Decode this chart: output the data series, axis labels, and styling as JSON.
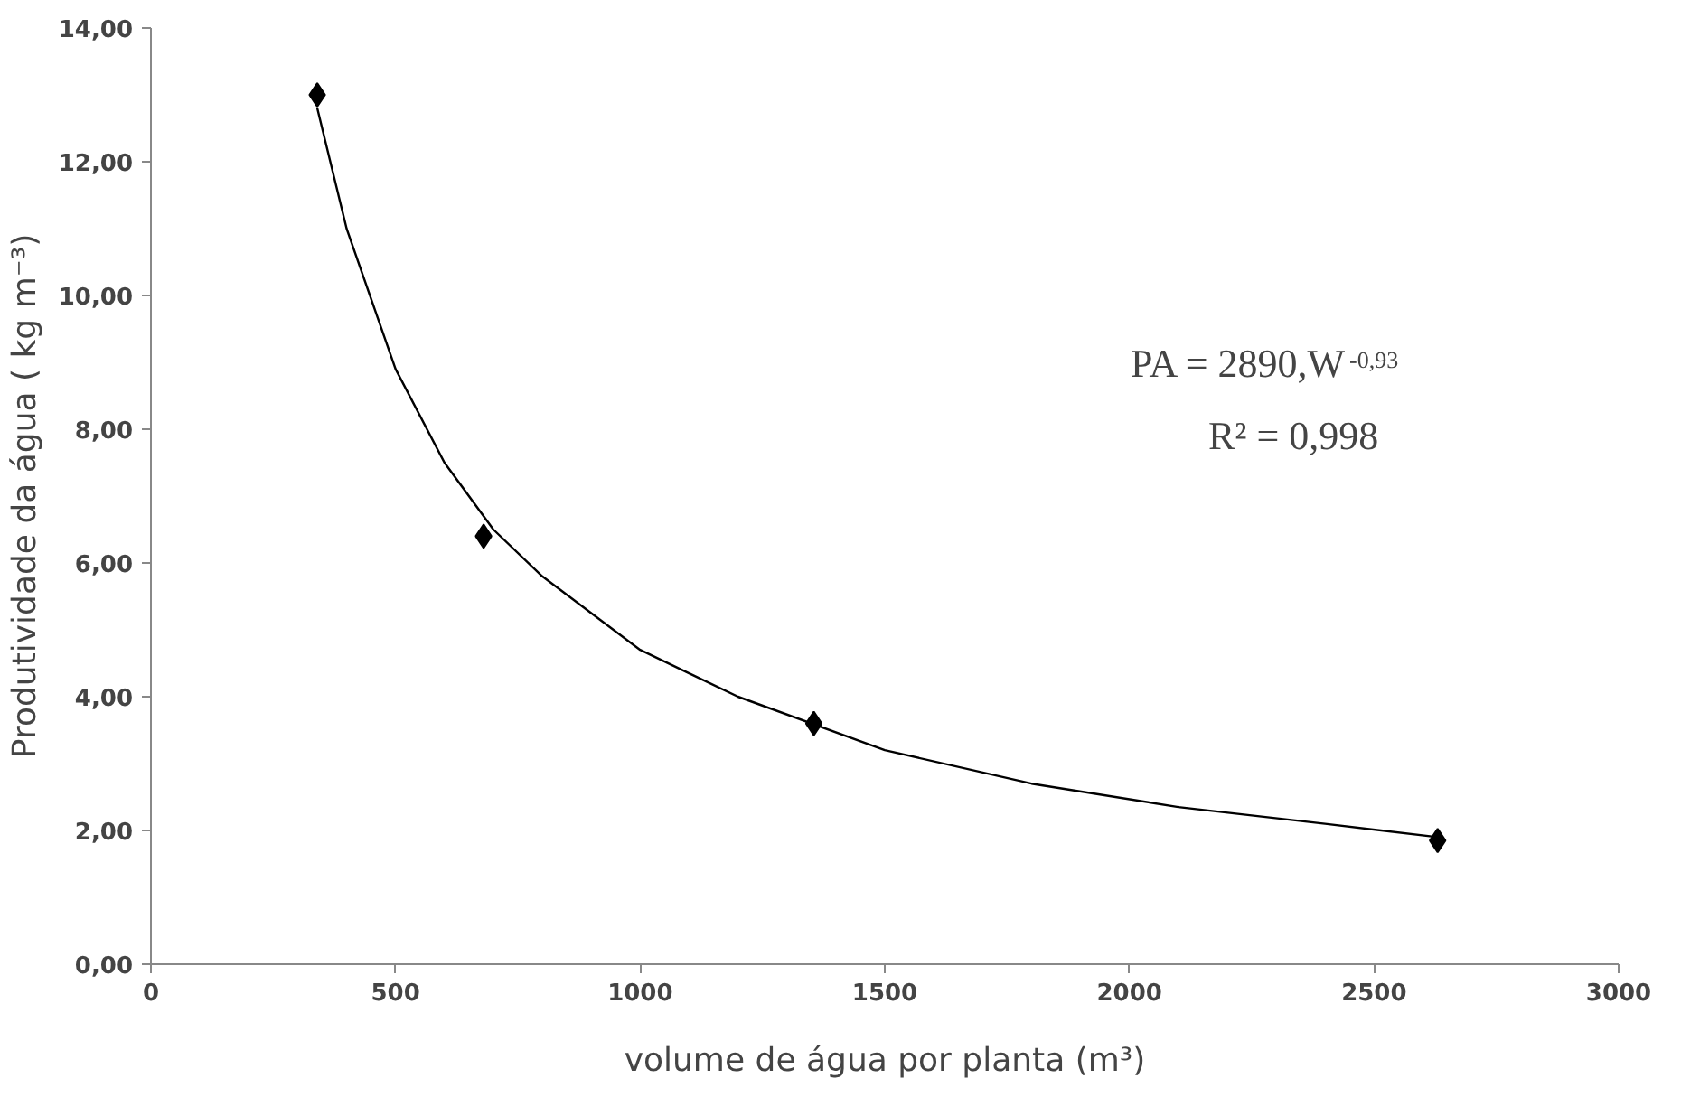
{
  "chart_data": {
    "type": "scatter",
    "xlabel": "volume de água por planta (m³)",
    "ylabel": "Produtividade da água ( kg m⁻³)",
    "xlim": [
      0,
      3000
    ],
    "xticks": [
      0,
      500,
      1000,
      1500,
      2000,
      2500,
      3000
    ],
    "ylim": [
      0,
      14
    ],
    "yticks": [
      {
        "value": 0,
        "label": "0,00"
      },
      {
        "value": 2,
        "label": "2,00"
      },
      {
        "value": 4,
        "label": "4,00"
      },
      {
        "value": 6,
        "label": "6,00"
      },
      {
        "value": 8,
        "label": "8,00"
      },
      {
        "value": 10,
        "label": "10,00"
      },
      {
        "value": 12,
        "label": "12,00"
      },
      {
        "value": 14,
        "label": "14,00"
      }
    ],
    "grid": false,
    "series": [
      {
        "marker": "diamond",
        "color": "#000000",
        "x": [
          340,
          680,
          1355,
          2630
        ],
        "values": [
          13.0,
          6.4,
          3.6,
          1.85
        ]
      },
      {
        "type": "line",
        "marker": "none",
        "color": "#000000",
        "line_style": "solid",
        "x": [
          340,
          400,
          500,
          600,
          700,
          800,
          1000,
          1200,
          1500,
          1800,
          2100,
          2400,
          2630
        ],
        "values": [
          12.8,
          11.0,
          8.9,
          7.5,
          6.5,
          5.8,
          4.7,
          4.0,
          3.2,
          2.7,
          2.35,
          2.1,
          1.9
        ]
      }
    ],
    "annotations": [
      "PA = 2890,W$^{-0,93}$",
      "R² = 0,998"
    ]
  }
}
